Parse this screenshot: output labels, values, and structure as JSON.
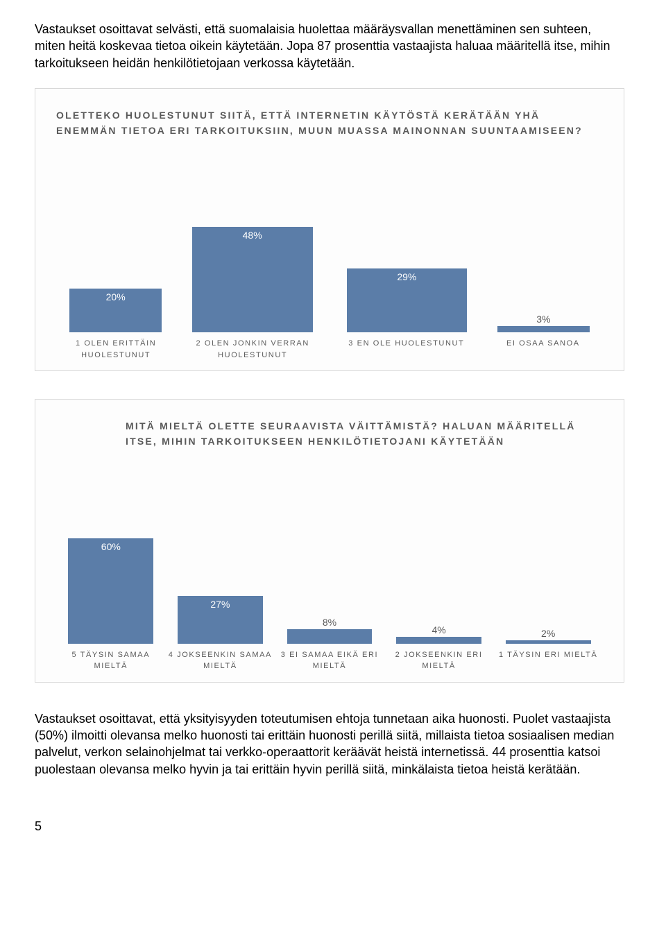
{
  "intro_para": "Vastaukset osoittavat selvästi, että suomalaisia huolettaa määräysvallan menettäminen sen suhteen, miten heitä koskevaa tietoa oikein käytetään. Jopa 87 prosenttia vastaajista haluaa määritellä itse, mihin tarkoitukseen heidän henkilötietojaan verkossa käytetään.",
  "chart1": {
    "title": "OLETTEKO HUOLESTUNUT SIITÄ, ETTÄ INTERNETIN KÄYTÖSTÄ KERÄTÄÄN YHÄ ENEMMÄN TIETOA ERI TARKOITUKSIIN, MUUN MUASSA MAINONNAN SUUNTAAMISEEN?",
    "bar_color": "#5b7da8",
    "max_value": 60,
    "bars": [
      {
        "value": 20,
        "label": "20%",
        "cat": "1 OLEN ERITTÄIN HUOLESTUNUT",
        "label_inside": true,
        "wide": false
      },
      {
        "value": 48,
        "label": "48%",
        "cat": "2 OLEN JONKIN VERRAN HUOLESTUNUT",
        "label_inside": true,
        "wide": true
      },
      {
        "value": 29,
        "label": "29%",
        "cat": "3 EN OLE HUOLESTUNUT",
        "label_inside": true,
        "wide": true
      },
      {
        "value": 3,
        "label": "3%",
        "cat": "EI OSAA SANOA",
        "label_inside": false,
        "wide": false
      }
    ]
  },
  "chart2": {
    "title": "MITÄ MIELTÄ OLETTE SEURAAVISTA VÄITTÄMISTÄ? HALUAN MÄÄRITELLÄ ITSE, MIHIN TARKOITUKSEEN HENKILÖTIETOJANI KÄYTETÄÄN",
    "bar_color": "#5b7da8",
    "max_value": 75,
    "bars": [
      {
        "value": 60,
        "label": "60%",
        "cat": "5 TÄYSIN SAMAA MIELTÄ",
        "label_inside": true
      },
      {
        "value": 27,
        "label": "27%",
        "cat": "4 JOKSEENKIN SAMAA MIELTÄ",
        "label_inside": true
      },
      {
        "value": 8,
        "label": "8%",
        "cat": "3 EI SAMAA EIKÄ ERI MIELTÄ",
        "label_inside": false
      },
      {
        "value": 4,
        "label": "4%",
        "cat": "2 JOKSEENKIN ERI MIELTÄ",
        "label_inside": false
      },
      {
        "value": 2,
        "label": "2%",
        "cat": "1 TÄYSIN ERI MIELTÄ",
        "label_inside": false
      }
    ]
  },
  "outro_para": "Vastaukset osoittavat, että yksityisyyden toteutumisen ehtoja tunnetaan aika huonosti. Puolet vastaajista (50%) ilmoitti olevansa melko huonosti tai erittäin huonosti perillä siitä, millaista tietoa sosiaalisen median palvelut, verkon selainohjelmat tai verkko-operaattorit keräävät heistä internetissä. 44 prosenttia katsoi puolestaan olevansa melko hyvin ja tai erittäin hyvin perillä siitä, minkälaista tietoa heistä kerätään.",
  "page_number": "5"
}
